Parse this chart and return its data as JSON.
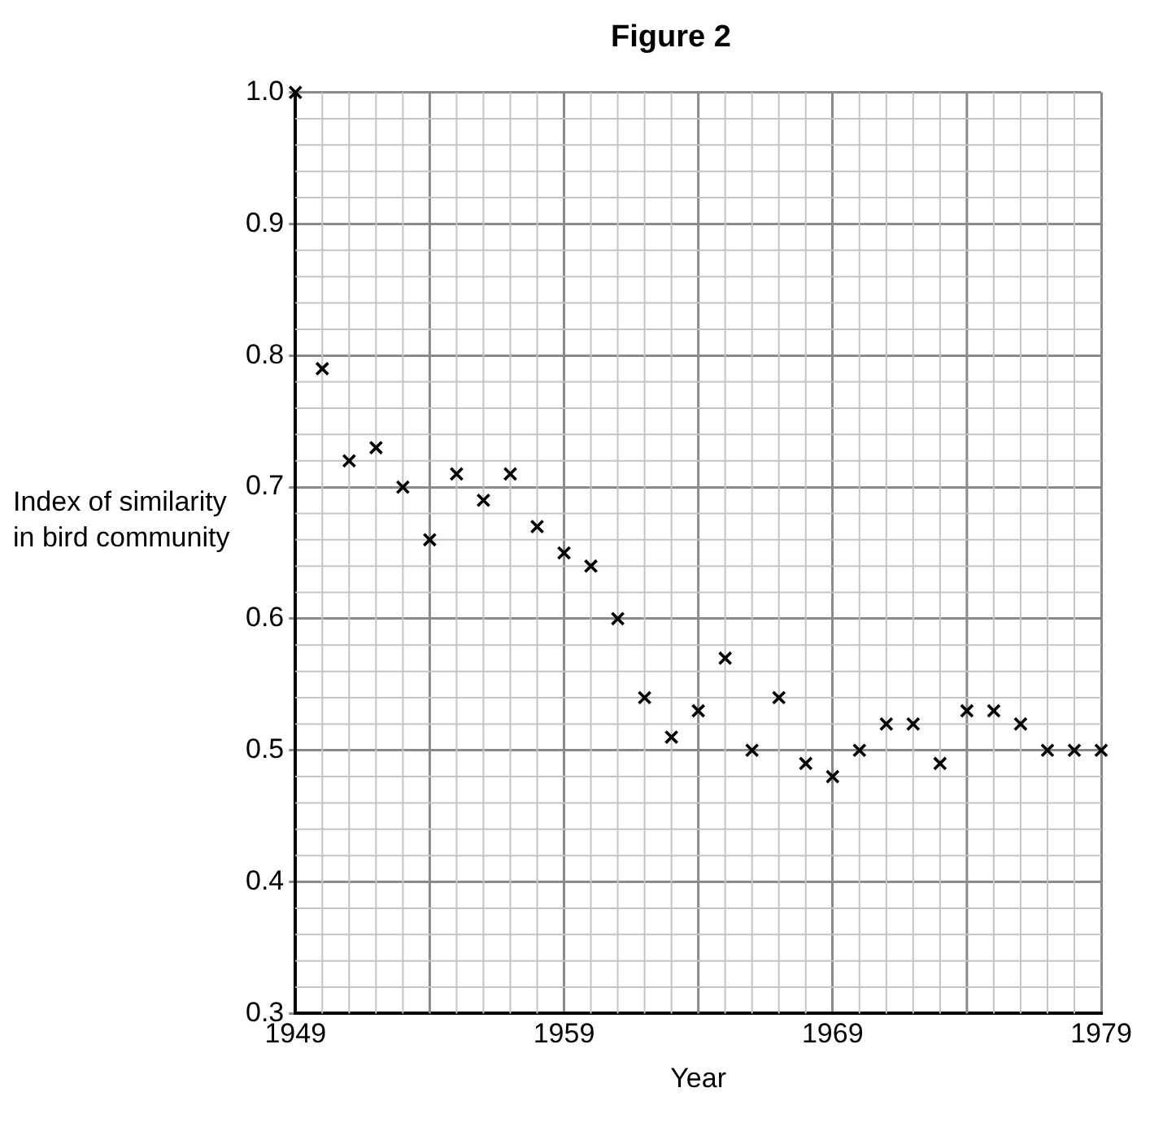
{
  "chart_data": {
    "type": "scatter",
    "title": "Figure 2",
    "xlabel": "Year",
    "ylabel": "Index of similarity in bird community",
    "x": [
      1949,
      1950,
      1951,
      1952,
      1953,
      1954,
      1955,
      1956,
      1957,
      1958,
      1959,
      1960,
      1961,
      1962,
      1963,
      1964,
      1965,
      1966,
      1967,
      1968,
      1969,
      1970,
      1971,
      1972,
      1973,
      1974,
      1975,
      1976,
      1977,
      1978,
      1979
    ],
    "values": [
      1.0,
      0.79,
      0.72,
      0.73,
      0.7,
      0.66,
      0.71,
      0.69,
      0.71,
      0.67,
      0.65,
      0.64,
      0.6,
      0.54,
      0.51,
      0.53,
      0.57,
      0.5,
      0.54,
      0.49,
      0.48,
      0.5,
      0.52,
      0.52,
      0.49,
      0.53,
      0.53,
      0.52,
      0.5,
      0.5,
      0.5
    ],
    "color": "#000000",
    "marker": "cross",
    "grid": true,
    "xlim": [
      1949,
      1979
    ],
    "xticks": [
      1949,
      1959,
      1969,
      1979
    ],
    "ylim": [
      0.3,
      1.0
    ],
    "yticks": [
      0.3,
      0.4,
      0.5,
      0.6,
      0.7,
      0.8,
      0.9,
      {
        "value": 1.0,
        "label": "1.0"
      }
    ]
  }
}
